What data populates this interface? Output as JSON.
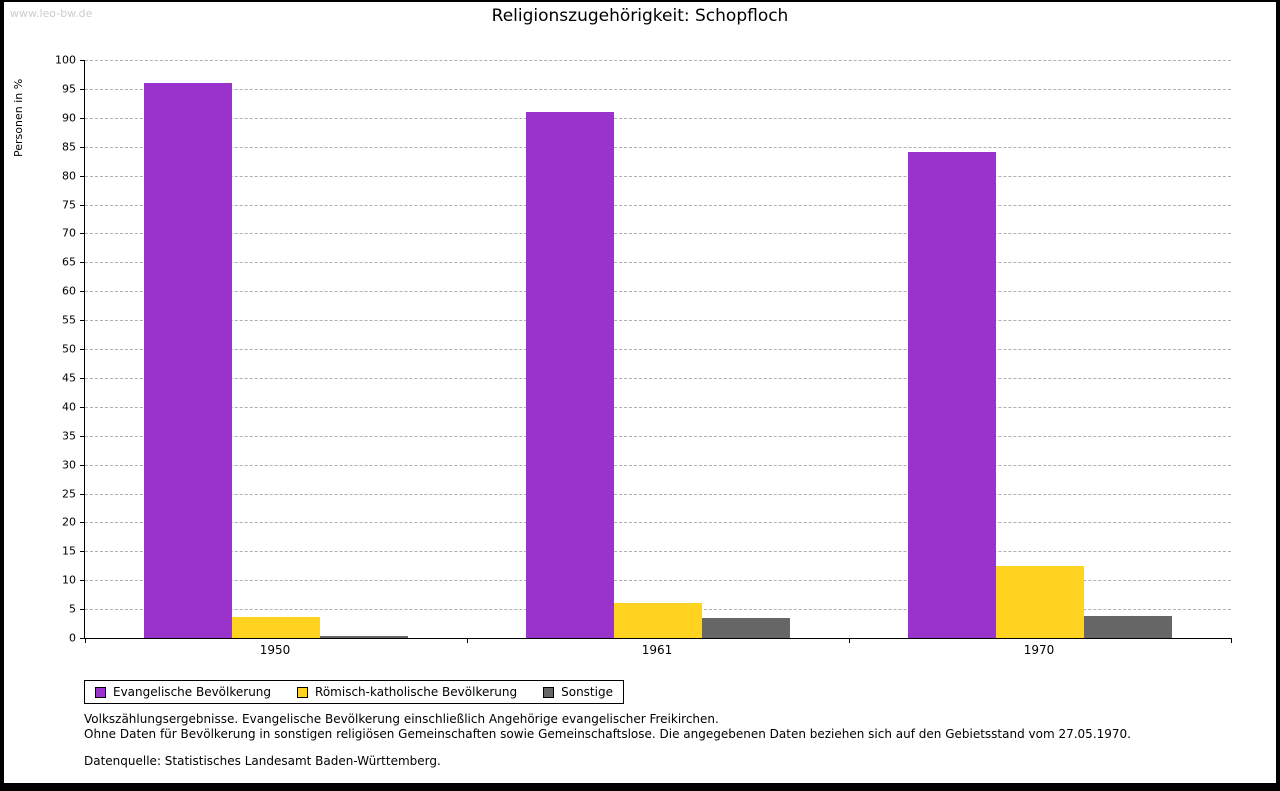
{
  "watermark": "www.leo-bw.de",
  "title": "Religionszugehörigkeit: Schopfloch",
  "chart_data": {
    "type": "bar",
    "title": "Religionszugehörigkeit: Schopfloch",
    "xlabel": "",
    "ylabel": "Personen in %",
    "ylim": [
      0,
      100
    ],
    "ytick_step": 5,
    "grid": "horizontal-dashed",
    "legend_position": "bottom-left",
    "categories": [
      "1950",
      "1961",
      "1970"
    ],
    "series": [
      {
        "name": "Evangelische Bevölkerung",
        "color": "#9933cc",
        "values": [
          96,
          91,
          84
        ]
      },
      {
        "name": "Römisch-katholische Bevölkerung",
        "color": "#ffd320",
        "values": [
          3.7,
          6,
          12.5
        ]
      },
      {
        "name": "Sonstige",
        "color": "#666666",
        "values": [
          0.4,
          3.4,
          3.8
        ]
      }
    ]
  },
  "notes": {
    "line1": "Volkszählungsergebnisse. Evangelische Bevölkerung einschließlich Angehörige evangelischer Freikirchen.",
    "line2": "Ohne Daten für Bevölkerung in sonstigen religiösen Gemeinschaften sowie Gemeinschaftslose. Die angegebenen Daten beziehen sich auf den Gebietsstand vom 27.05.1970.",
    "source": "Datenquelle: Statistisches Landesamt Baden-Württemberg."
  }
}
